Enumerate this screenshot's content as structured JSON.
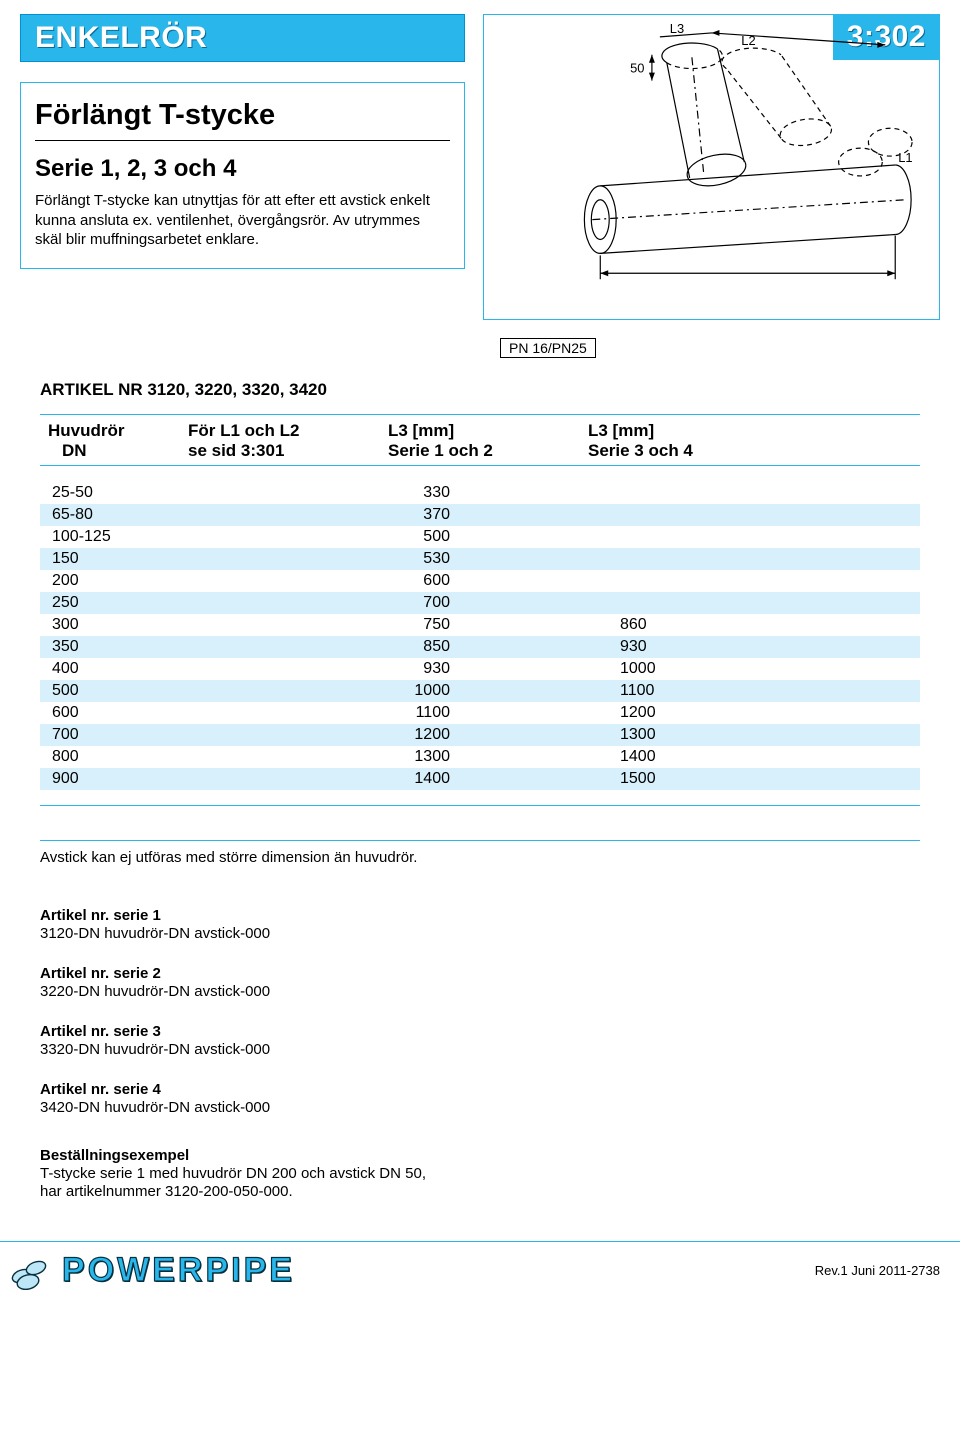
{
  "header": {
    "title": "ENKELRÖR",
    "page_code": "3:302"
  },
  "desc": {
    "title": "Förlängt T-stycke",
    "subtitle": "Serie 1, 2, 3 och 4",
    "text": "Förlängt T-stycke kan utnyttjas för att efter ett avstick enkelt kunna ansluta ex. ventilenhet, övergångsrör. Av utrymmes skäl blir muffningsarbetet enklare."
  },
  "diagram": {
    "l3": "L3",
    "l2": "L2",
    "l1": "L1",
    "dim50": "50"
  },
  "pn_label": "PN 16/PN25",
  "article_nr_title": "ARTIKEL NR 3120, 3220, 3320, 3420",
  "table": {
    "headers": {
      "c1a": "Huvudrör",
      "c1b": "DN",
      "c2a": "För L1 och L2",
      "c2b": "se sid 3:301",
      "c3a": "L3 [mm]",
      "c3b": "Serie 1 och 2",
      "c4a": "L3 [mm]",
      "c4b": "Serie 3 och 4"
    },
    "rows": [
      {
        "dn": "25-50",
        "l3_12": "330",
        "l3_34": ""
      },
      {
        "dn": "65-80",
        "l3_12": "370",
        "l3_34": ""
      },
      {
        "dn": "100-125",
        "l3_12": "500",
        "l3_34": ""
      },
      {
        "dn": "150",
        "l3_12": "530",
        "l3_34": ""
      },
      {
        "dn": "200",
        "l3_12": "600",
        "l3_34": ""
      },
      {
        "dn": "250",
        "l3_12": "700",
        "l3_34": ""
      },
      {
        "dn": "300",
        "l3_12": "750",
        "l3_34": "860"
      },
      {
        "dn": "350",
        "l3_12": "850",
        "l3_34": "930"
      },
      {
        "dn": "400",
        "l3_12": "930",
        "l3_34": "1000"
      },
      {
        "dn": "500",
        "l3_12": "1000",
        "l3_34": "1100"
      },
      {
        "dn": "600",
        "l3_12": "1100",
        "l3_34": "1200"
      },
      {
        "dn": "700",
        "l3_12": "1200",
        "l3_34": "1300"
      },
      {
        "dn": "800",
        "l3_12": "1300",
        "l3_34": "1400"
      },
      {
        "dn": "900",
        "l3_12": "1400",
        "l3_34": "1500"
      }
    ]
  },
  "note_line": "Avstick kan ej utföras med större dimension än huvudrör.",
  "articles": [
    {
      "h": "Artikel nr. serie 1",
      "v": "3120-DN huvudrör-DN avstick-000"
    },
    {
      "h": "Artikel nr. serie 2",
      "v": "3220-DN huvudrör-DN avstick-000"
    },
    {
      "h": "Artikel nr. serie 3",
      "v": "3320-DN huvudrör-DN avstick-000"
    },
    {
      "h": "Artikel nr. serie 4",
      "v": "3420-DN huvudrör-DN avstick-000"
    }
  ],
  "order": {
    "h": "Beställningsexempel",
    "l1": "T-stycke serie 1 med huvudrör DN 200 och avstick DN 50,",
    "l2": "har artikelnummer 3120-200-050-000."
  },
  "footer": {
    "logo_text": "OWERPIPE",
    "rev": "Rev.1 Juni 2011-2738"
  }
}
